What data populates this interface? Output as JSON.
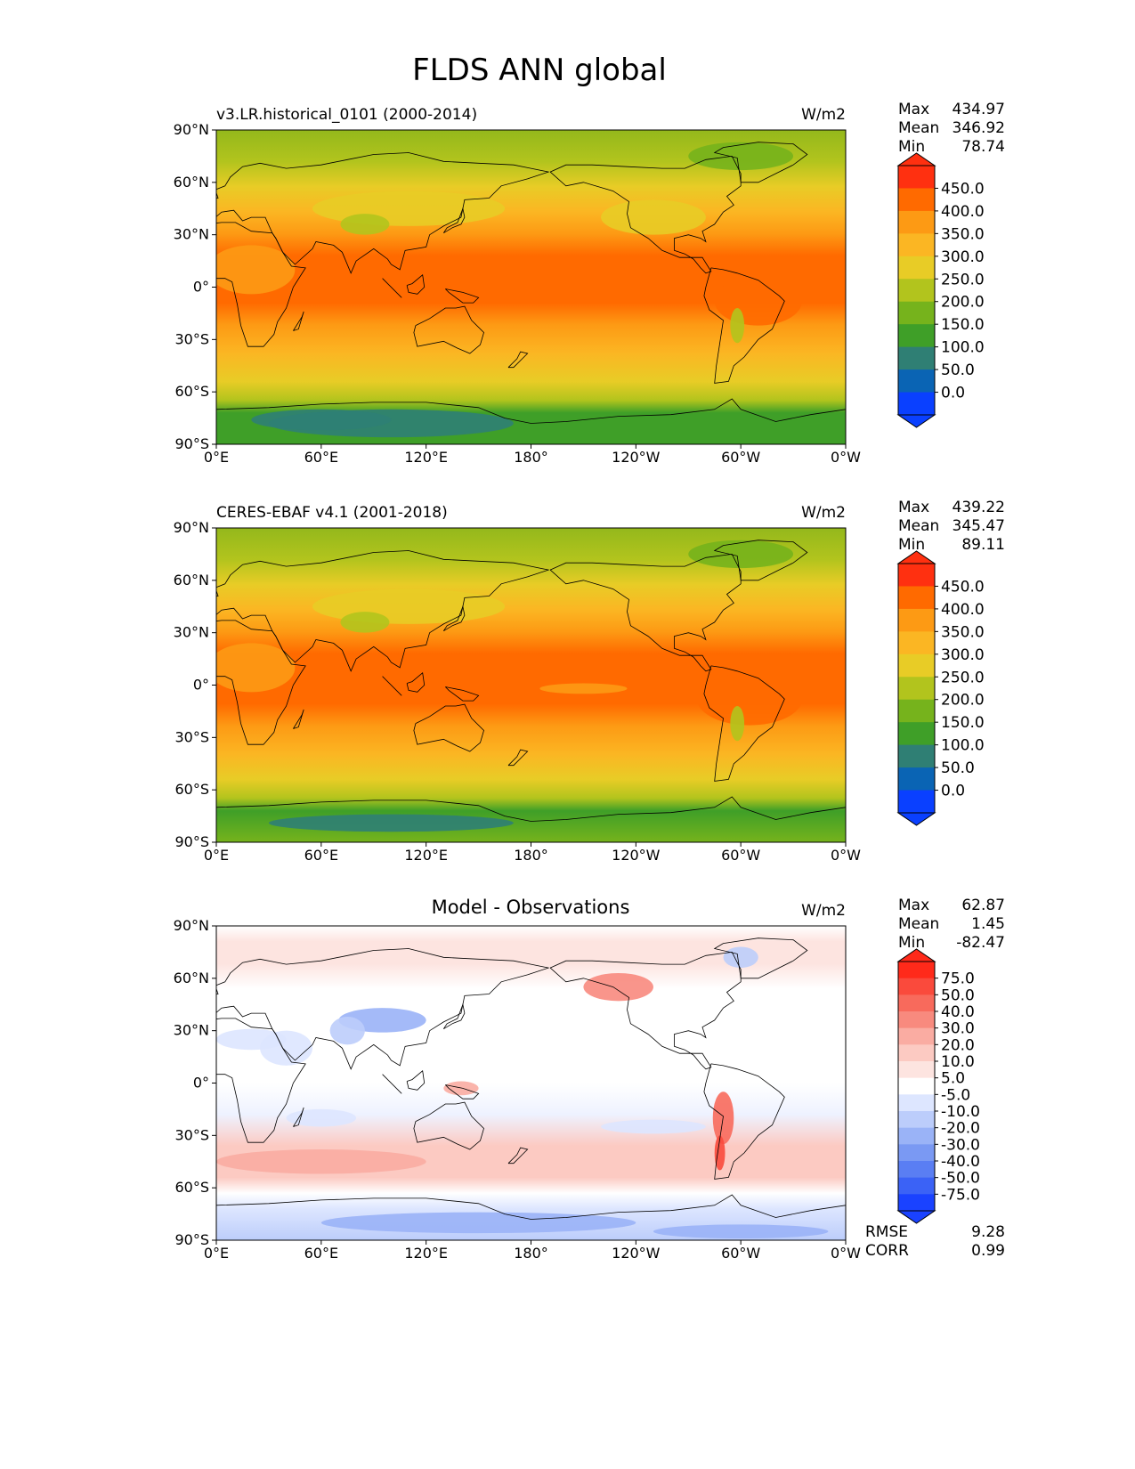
{
  "title": "FLDS ANN global",
  "axes": {
    "lat_ticks": [
      "90°N",
      "60°N",
      "30°N",
      "0°",
      "30°S",
      "60°S",
      "90°S"
    ],
    "lon_ticks": [
      "0°E",
      "60°E",
      "120°E",
      "180°",
      "120°W",
      "60°W",
      "0°W"
    ]
  },
  "panels": [
    {
      "id": "model",
      "left_title": "v3.LR.historical_0101 (2000-2014)",
      "center_title": "",
      "units": "W/m2",
      "stats": [
        [
          "Max",
          "434.97"
        ],
        [
          "Mean",
          "346.92"
        ],
        [
          "Min",
          "78.74"
        ]
      ],
      "colorbar": {
        "labels": [
          "450.0",
          "400.0",
          "350.0",
          "300.0",
          "250.0",
          "200.0",
          "150.0",
          "100.0",
          "50.0",
          "0.0"
        ],
        "colors": [
          "#ff3010",
          "#ff6a00",
          "#fd9a14",
          "#fbb623",
          "#e8cc26",
          "#b2c41d",
          "#76b31c",
          "#3f9f28",
          "#2f7f74",
          "#0a64b4",
          "#0a40ff"
        ],
        "extend_top": "#ff3010",
        "extend_bottom": "#0a40ff"
      }
    },
    {
      "id": "obs",
      "left_title": "CERES-EBAF v4.1 (2001-2018)",
      "center_title": "",
      "units": "W/m2",
      "stats": [
        [
          "Max",
          "439.22"
        ],
        [
          "Mean",
          "345.47"
        ],
        [
          "Min",
          "89.11"
        ]
      ],
      "colorbar": {
        "labels": [
          "450.0",
          "400.0",
          "350.0",
          "300.0",
          "250.0",
          "200.0",
          "150.0",
          "100.0",
          "50.0",
          "0.0"
        ],
        "colors": [
          "#ff3010",
          "#ff6a00",
          "#fd9a14",
          "#fbb623",
          "#e8cc26",
          "#b2c41d",
          "#76b31c",
          "#3f9f28",
          "#2f7f74",
          "#0a64b4",
          "#0a40ff"
        ],
        "extend_top": "#ff3010",
        "extend_bottom": "#0a40ff"
      }
    },
    {
      "id": "diff",
      "left_title": "",
      "center_title": "Model - Observations",
      "units": "W/m2",
      "stats": [
        [
          "Max",
          "62.87"
        ],
        [
          "Mean",
          "1.45"
        ],
        [
          "Min",
          "-82.47"
        ]
      ],
      "colorbar": {
        "labels": [
          "75.0",
          "50.0",
          "40.0",
          "30.0",
          "20.0",
          "10.0",
          "5.0",
          "-5.0",
          "-10.0",
          "-20.0",
          "-30.0",
          "-40.0",
          "-50.0",
          "-75.0"
        ],
        "colors": [
          "#ff2a1a",
          "#fa4a3c",
          "#f86a5c",
          "#f88a7e",
          "#faaca2",
          "#fccac2",
          "#fde4e0",
          "#ffffff",
          "#dde6ff",
          "#bccdfb",
          "#9ab3f7",
          "#7a99f3",
          "#5a7ef3",
          "#3b62f6",
          "#1a42ff"
        ],
        "extend_top": "#ff2a1a",
        "extend_bottom": "#1a42ff"
      }
    }
  ],
  "metrics": [
    [
      "RMSE",
      "9.28"
    ],
    [
      "CORR",
      "0.99"
    ]
  ],
  "chart_data": [
    {
      "type": "heatmap",
      "title": "v3.LR.historical_0101 (2000-2014)",
      "units": "W/m2",
      "lat_range": [
        -90,
        90
      ],
      "lon_range": [
        0,
        360
      ],
      "levels": [
        0,
        50,
        100,
        150,
        200,
        250,
        300,
        350,
        400,
        450
      ],
      "max": 434.97,
      "mean": 346.92,
      "min": 78.74,
      "zonal_mean_profile": [
        [
          90,
          235
        ],
        [
          75,
          245
        ],
        [
          60,
          290
        ],
        [
          45,
          315
        ],
        [
          30,
          345
        ],
        [
          15,
          385
        ],
        [
          0,
          405
        ],
        [
          -15,
          395
        ],
        [
          -30,
          365
        ],
        [
          -45,
          330
        ],
        [
          -60,
          290
        ],
        [
          -70,
          200
        ],
        [
          -80,
          120
        ],
        [
          -90,
          130
        ]
      ]
    },
    {
      "type": "heatmap",
      "title": "CERES-EBAF v4.1 (2001-2018)",
      "units": "W/m2",
      "lat_range": [
        -90,
        90
      ],
      "lon_range": [
        0,
        360
      ],
      "levels": [
        0,
        50,
        100,
        150,
        200,
        250,
        300,
        350,
        400,
        450
      ],
      "max": 439.22,
      "mean": 345.47,
      "min": 89.11,
      "zonal_mean_profile": [
        [
          90,
          235
        ],
        [
          75,
          245
        ],
        [
          60,
          285
        ],
        [
          45,
          310
        ],
        [
          30,
          345
        ],
        [
          15,
          390
        ],
        [
          0,
          408
        ],
        [
          -15,
          395
        ],
        [
          -30,
          360
        ],
        [
          -45,
          325
        ],
        [
          -60,
          285
        ],
        [
          -70,
          210
        ],
        [
          -80,
          140
        ],
        [
          -90,
          150
        ]
      ]
    },
    {
      "type": "heatmap",
      "title": "Model - Observations",
      "units": "W/m2",
      "lat_range": [
        -90,
        90
      ],
      "lon_range": [
        0,
        360
      ],
      "levels": [
        -75,
        -50,
        -40,
        -30,
        -20,
        -10,
        -5,
        5,
        10,
        20,
        30,
        40,
        50,
        75
      ],
      "max": 62.87,
      "mean": 1.45,
      "min": -82.47,
      "rmse": 9.28,
      "corr": 0.99
    }
  ]
}
